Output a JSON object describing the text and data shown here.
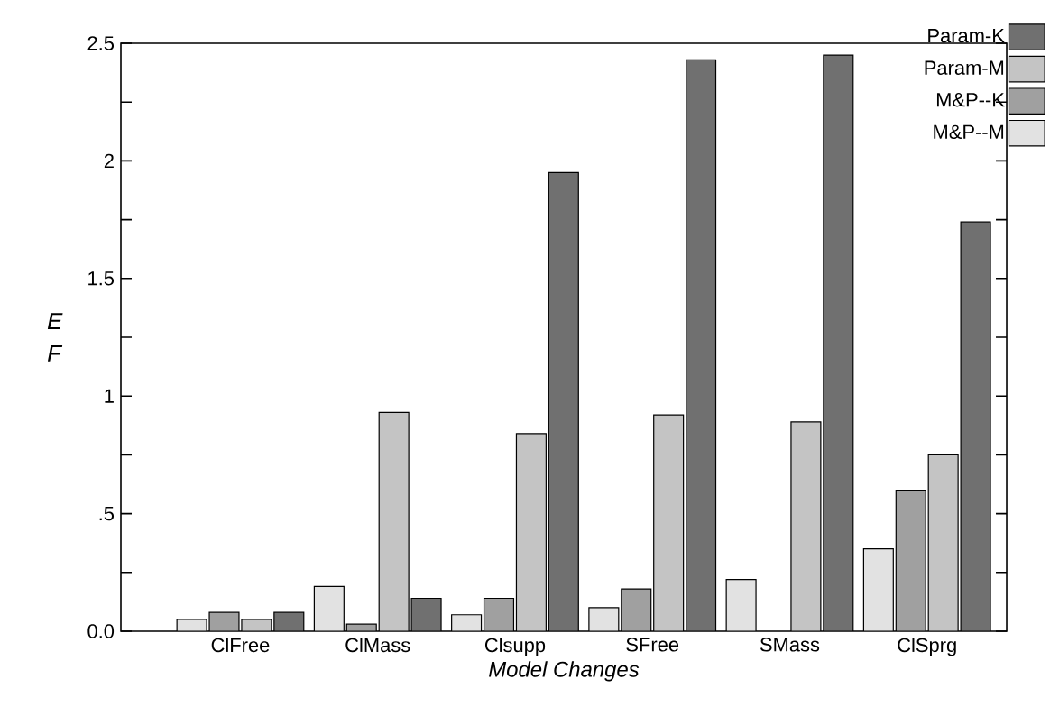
{
  "chart_data": {
    "type": "bar",
    "xlabel": "Model Changes",
    "ylabel": "E F",
    "categories": [
      "ClFree",
      "ClMass",
      "Clsupp",
      "SFree",
      "SMass",
      "ClSprg"
    ],
    "series": [
      {
        "name": "M&P--M",
        "color": "#e2e2e2",
        "values": [
          0.05,
          0.19,
          0.07,
          0.1,
          0.22,
          0.35
        ]
      },
      {
        "name": "M&P--K",
        "color": "#a0a0a0",
        "values": [
          0.08,
          0.03,
          0.14,
          0.18,
          null,
          0.6
        ]
      },
      {
        "name": "Param-M",
        "color": "#c4c4c4",
        "values": [
          0.05,
          0.93,
          0.84,
          0.92,
          0.89,
          0.75
        ]
      },
      {
        "name": "Param-K",
        "color": "#707070",
        "values": [
          0.08,
          0.14,
          1.95,
          2.43,
          2.45,
          1.74
        ]
      }
    ],
    "ylim": [
      0,
      2.5
    ],
    "yticks": [
      {
        "value": 0,
        "label": "0.0"
      },
      {
        "value": 0.25,
        "label": null
      },
      {
        "value": 0.5,
        "label": ".5"
      },
      {
        "value": 0.75,
        "label": null
      },
      1,
      {
        "value": 1.25,
        "label": null
      },
      1.5,
      {
        "value": 1.75,
        "label": null
      },
      2,
      {
        "value": 2.25,
        "label": null
      },
      2.5
    ],
    "legend": "top right"
  }
}
